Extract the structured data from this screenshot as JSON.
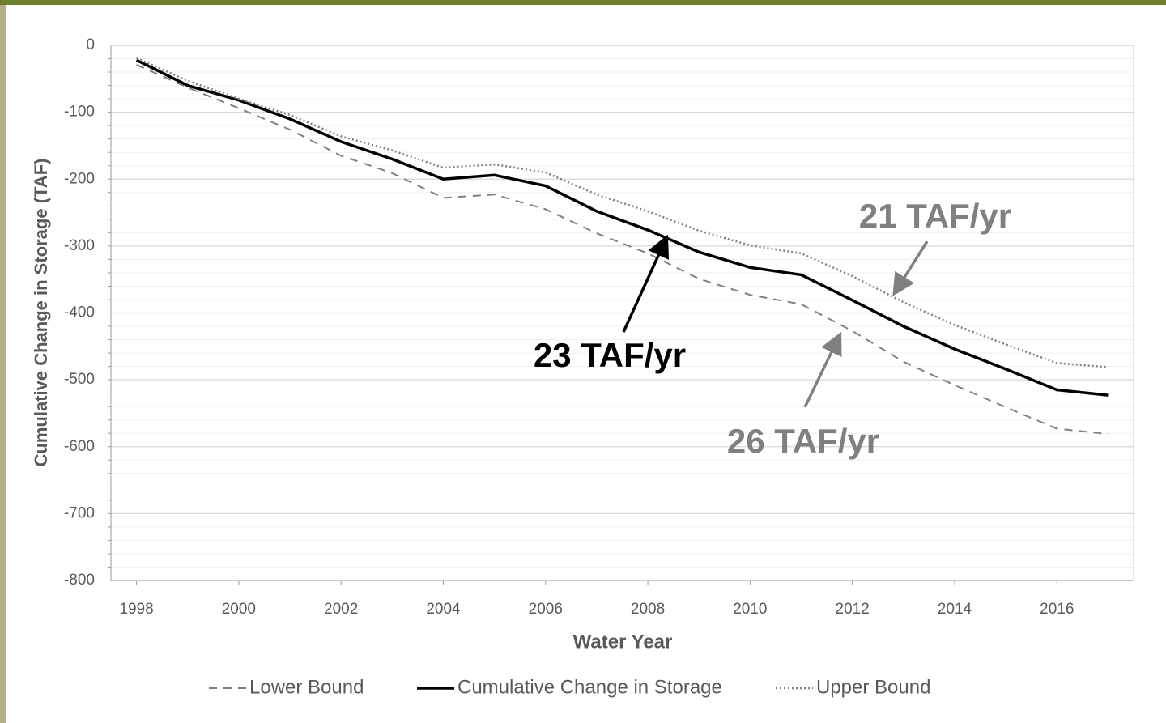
{
  "chart_data": {
    "type": "line",
    "x_label": "Water Year",
    "y_label": "Cumulative Change in Storage (TAF)",
    "x": [
      1998,
      1999,
      2000,
      2001,
      2002,
      2003,
      2004,
      2005,
      2006,
      2007,
      2008,
      2009,
      2010,
      2011,
      2012,
      2013,
      2014,
      2015,
      2016,
      2017
    ],
    "series": [
      {
        "name": "Lower Bound",
        "color": "#808080",
        "dash": "10 8",
        "width": 2,
        "values": [
          -29,
          -63,
          -94,
          -126,
          -165,
          -191,
          -228,
          -223,
          -245,
          -281,
          -311,
          -349,
          -373,
          -387,
          -427,
          -473,
          -508,
          -541,
          -573,
          -581
        ]
      },
      {
        "name": "Cumulative Change in Storage",
        "color": "#000000",
        "dash": "",
        "width": 3.5,
        "values": [
          -22,
          -60,
          -82,
          -110,
          -144,
          -170,
          -200,
          -194,
          -210,
          -248,
          -276,
          -309,
          -332,
          -343,
          -381,
          -420,
          -454,
          -484,
          -515,
          -523
        ]
      },
      {
        "name": "Upper Bound",
        "color": "#808080",
        "dash": "2 3",
        "width": 2.5,
        "values": [
          -19,
          -53,
          -80,
          -104,
          -136,
          -157,
          -183,
          -178,
          -190,
          -223,
          -248,
          -277,
          -299,
          -311,
          -345,
          -384,
          -418,
          -447,
          -475,
          -481
        ]
      }
    ],
    "xlim": [
      1997.5,
      2017.5
    ],
    "xticks": [
      1998,
      2000,
      2002,
      2004,
      2006,
      2008,
      2010,
      2012,
      2014,
      2016
    ],
    "ylim": [
      -800,
      0
    ],
    "yticks": [
      0,
      -100,
      -200,
      -300,
      -400,
      -500,
      -600,
      -700,
      -800
    ],
    "grid": true,
    "legend": "bottom",
    "annotations": [
      "23 TAF/yr",
      "21 TAF/yr",
      "26 TAF/yr"
    ]
  }
}
